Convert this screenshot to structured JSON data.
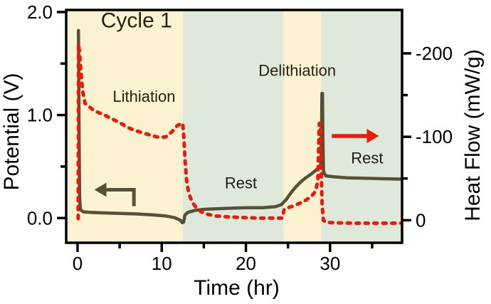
{
  "chart_data": {
    "type": "line",
    "title": "Cycle 1",
    "title_pos": {
      "t": 7.0,
      "v": 1.85
    },
    "title_color": "#282010",
    "xlabel": "Time (hr)",
    "ylabel_left": "Potential (V)",
    "ylabel_right": "Heat Flow (mW/g)",
    "xlim": [
      -1.35,
      38.55
    ],
    "ylim_left": [
      -0.24,
      2.02
    ],
    "ylim_right": [
      27,
      -252
    ],
    "x_ticks": [
      {
        "v": 0,
        "label": "0"
      },
      {
        "v": 10,
        "label": "10"
      },
      {
        "v": 20,
        "label": "20"
      },
      {
        "v": 30,
        "label": "30"
      }
    ],
    "x_minor_ticks": [
      5,
      15,
      25,
      35
    ],
    "y_ticks_left": [
      {
        "v": 0.0,
        "label": "0.0"
      },
      {
        "v": 1.0,
        "label": "1.0"
      },
      {
        "v": 2.0,
        "label": "2.0"
      }
    ],
    "y_minor_ticks_left": [
      0.5,
      1.5
    ],
    "y_ticks_right": [
      {
        "v": 0,
        "label": "0"
      },
      {
        "v": -100,
        "label": "-100"
      },
      {
        "v": -200,
        "label": "-200"
      }
    ],
    "y_minor_ticks_right": [
      -50,
      -150
    ],
    "grid": false,
    "axis_color": "#000000",
    "frame": true,
    "regions": [
      {
        "name": "lithiation",
        "label": "Lithiation",
        "start": -1.35,
        "end": 12.5,
        "color": "#faf2d0",
        "label_t": 7.9,
        "label_v": 1.13,
        "label_color": "#282010"
      },
      {
        "name": "rest-1",
        "label": "Rest",
        "start": 12.5,
        "end": 24.5,
        "color": "#dee9db",
        "label_t": 19.4,
        "label_v": 0.29,
        "label_color": "#1c1c14"
      },
      {
        "name": "delithiation",
        "label": "Delithiation",
        "start": 24.5,
        "end": 28.95,
        "color": "#faf2d0",
        "label_t": 26.1,
        "label_v": 1.38,
        "label_color": "#282010"
      },
      {
        "name": "rest-2",
        "label": "Rest",
        "start": 28.95,
        "end": 38.55,
        "color": "#dee9db",
        "label_t": 34.4,
        "label_v": 0.53,
        "label_color": "#1c1c14"
      }
    ],
    "series": [
      {
        "name": "potential",
        "axis": "left",
        "color": "#555038",
        "style": "solid",
        "width": 4.5,
        "points": [
          [
            0.1,
            1.82
          ],
          [
            0.14,
            1.5
          ],
          [
            0.18,
            0.8
          ],
          [
            0.25,
            0.2
          ],
          [
            0.35,
            0.08
          ],
          [
            0.7,
            0.06
          ],
          [
            1.5,
            0.055
          ],
          [
            3.0,
            0.05
          ],
          [
            5.0,
            0.045
          ],
          [
            7.0,
            0.04
          ],
          [
            9.0,
            0.03
          ],
          [
            10.5,
            0.02
          ],
          [
            11.5,
            0.005
          ],
          [
            12.2,
            -0.02
          ],
          [
            12.45,
            -0.045
          ],
          [
            12.6,
            -0.04
          ],
          [
            12.75,
            0.028
          ],
          [
            13.1,
            0.055
          ],
          [
            14.0,
            0.076
          ],
          [
            15.0,
            0.085
          ],
          [
            16.5,
            0.09
          ],
          [
            18.0,
            0.095
          ],
          [
            20.0,
            0.1
          ],
          [
            22.0,
            0.1
          ],
          [
            23.5,
            0.11
          ],
          [
            24.2,
            0.13
          ],
          [
            24.8,
            0.18
          ],
          [
            25.4,
            0.25
          ],
          [
            25.9,
            0.3
          ],
          [
            26.5,
            0.35
          ],
          [
            27.1,
            0.39
          ],
          [
            27.8,
            0.43
          ],
          [
            28.4,
            0.47
          ],
          [
            28.8,
            0.5
          ],
          [
            28.95,
            0.55
          ],
          [
            29.0,
            0.9
          ],
          [
            29.03,
            1.21
          ],
          [
            29.1,
            1.21
          ],
          [
            29.14,
            0.8
          ],
          [
            29.22,
            0.45
          ],
          [
            29.5,
            0.41
          ],
          [
            30.5,
            0.4
          ],
          [
            32.0,
            0.39
          ],
          [
            35.0,
            0.385
          ],
          [
            38.5,
            0.378
          ]
        ]
      },
      {
        "name": "heat-flow",
        "axis": "right",
        "color": "#e81c0a",
        "style": "dashed",
        "width": 5,
        "points": [
          [
            0.08,
            -2
          ],
          [
            0.1,
            -120
          ],
          [
            0.12,
            -211
          ],
          [
            0.25,
            -200
          ],
          [
            0.4,
            -178
          ],
          [
            0.6,
            -155
          ],
          [
            0.9,
            -140
          ],
          [
            2.0,
            -131
          ],
          [
            3.0,
            -127
          ],
          [
            4.0,
            -122
          ],
          [
            5.0,
            -117
          ],
          [
            6.0,
            -111
          ],
          [
            7.0,
            -107
          ],
          [
            8.0,
            -104
          ],
          [
            9.0,
            -101
          ],
          [
            9.8,
            -99
          ],
          [
            10.5,
            -100
          ],
          [
            11.2,
            -106
          ],
          [
            11.8,
            -113
          ],
          [
            12.3,
            -116
          ],
          [
            12.5,
            -116
          ],
          [
            12.62,
            -100
          ],
          [
            12.78,
            -70
          ],
          [
            12.95,
            -48
          ],
          [
            13.2,
            -33
          ],
          [
            13.6,
            -22
          ],
          [
            14.1,
            -15
          ],
          [
            14.7,
            -10
          ],
          [
            15.5,
            -7
          ],
          [
            16.5,
            -5
          ],
          [
            18.0,
            -4
          ],
          [
            20.0,
            -3
          ],
          [
            22.0,
            -2.5
          ],
          [
            24.3,
            -2.5
          ],
          [
            24.55,
            -13
          ],
          [
            25.0,
            -15
          ],
          [
            25.6,
            -17
          ],
          [
            26.2,
            -19.5
          ],
          [
            26.8,
            -22
          ],
          [
            27.4,
            -26
          ],
          [
            27.9,
            -30
          ],
          [
            28.3,
            -35
          ],
          [
            28.55,
            -48
          ],
          [
            28.65,
            -90
          ],
          [
            28.72,
            -116
          ],
          [
            28.85,
            -116
          ],
          [
            28.95,
            -60
          ],
          [
            29.05,
            -20
          ],
          [
            29.2,
            0
          ],
          [
            29.5,
            2.5
          ],
          [
            30.5,
            3
          ],
          [
            33.0,
            3.5
          ],
          [
            36.0,
            3.5
          ],
          [
            38.5,
            3.5
          ]
        ]
      }
    ],
    "arrows": [
      {
        "name": "potential-left-axis-arrow",
        "axis": "left",
        "color": "#555038",
        "width": 5,
        "points": [
          [
            6.7,
            0.115
          ],
          [
            6.7,
            0.275
          ],
          [
            2.0,
            0.275
          ]
        ],
        "head_len": 17,
        "head_halfwidth": 10
      },
      {
        "name": "heat-flow-right-axis-arrow",
        "axis": "right",
        "color": "#e81c0a",
        "width": 5.5,
        "points": [
          [
            30.2,
            -101
          ],
          [
            35.8,
            -101
          ]
        ],
        "head_len": 17,
        "head_halfwidth": 10
      }
    ]
  }
}
